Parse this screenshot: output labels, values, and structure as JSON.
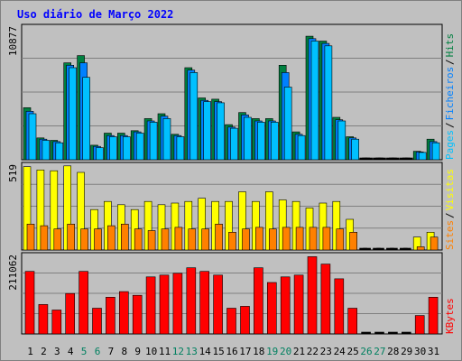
{
  "title": "Uso diário de Março 2022",
  "colors": {
    "pages": "#00c0ff",
    "files": "#0080ff",
    "hits": "#008040",
    "visits": "#ffff00",
    "sites": "#ff8000",
    "kbytes": "#ff0000",
    "weekend_label": "#008060",
    "weekday_label": "#000000",
    "bg": "#c0c0c0"
  },
  "chart_data": [
    {
      "type": "bar",
      "name": "top-panel",
      "ymax_label": "10877",
      "ylim": [
        0,
        10877
      ],
      "legend": [
        "Pages",
        "/",
        "Ficheiros",
        "/",
        "Hits"
      ],
      "series": [
        {
          "name": "Hits",
          "values": [
            4300,
            1800,
            1600,
            8000,
            8600,
            1200,
            2200,
            2200,
            2400,
            3400,
            3800,
            2100,
            7600,
            5100,
            5000,
            2900,
            3900,
            3400,
            3400,
            7800,
            2300,
            10200,
            9800,
            3500,
            1900,
            0,
            0,
            0,
            0,
            700,
            1700
          ]
        },
        {
          "name": "Ficheiros",
          "values": [
            4000,
            1700,
            1500,
            7800,
            8000,
            1100,
            2000,
            2000,
            2300,
            3200,
            3600,
            2000,
            7400,
            4900,
            4800,
            2700,
            3700,
            3200,
            3200,
            7200,
            2100,
            10000,
            9600,
            3300,
            1800,
            0,
            0,
            0,
            0,
            650,
            1500
          ]
        },
        {
          "name": "Pages",
          "values": [
            3800,
            1600,
            1400,
            7600,
            6800,
            1000,
            1900,
            1900,
            2200,
            3100,
            3400,
            1900,
            7200,
            4800,
            4700,
            2600,
            3500,
            3100,
            3100,
            6000,
            2000,
            9800,
            9400,
            3200,
            1700,
            0,
            0,
            0,
            0,
            600,
            1400
          ]
        }
      ]
    },
    {
      "type": "bar",
      "name": "middle-panel",
      "ymax_label": "519",
      "ylim": [
        0,
        519
      ],
      "legend": [
        "Sites",
        "/",
        "Visitas"
      ],
      "series": [
        {
          "name": "Visitas",
          "values": [
            515,
            495,
            490,
            520,
            480,
            250,
            300,
            280,
            250,
            300,
            280,
            290,
            300,
            320,
            300,
            300,
            360,
            300,
            360,
            310,
            300,
            260,
            290,
            300,
            190,
            0,
            0,
            0,
            0,
            80,
            110
          ]
        },
        {
          "name": "Sites",
          "values": [
            160,
            150,
            130,
            160,
            130,
            130,
            150,
            160,
            130,
            120,
            130,
            140,
            130,
            130,
            160,
            110,
            130,
            140,
            130,
            140,
            140,
            140,
            140,
            130,
            110,
            0,
            0,
            0,
            0,
            20,
            80
          ]
        }
      ]
    },
    {
      "type": "bar",
      "name": "bottom-panel",
      "ymax_label": "211062",
      "ylim": [
        0,
        211062
      ],
      "legend": [
        "KBytes"
      ],
      "series": [
        {
          "name": "KBytes",
          "values": [
            170000,
            80000,
            65000,
            110000,
            170000,
            70000,
            100000,
            115000,
            105000,
            155000,
            160000,
            165000,
            180000,
            170000,
            160000,
            70000,
            75000,
            180000,
            140000,
            155000,
            160000,
            210000,
            190000,
            150000,
            70000,
            0,
            0,
            0,
            0,
            50000,
            100000
          ]
        }
      ]
    }
  ],
  "x_labels": [
    "1",
    "2",
    "3",
    "4",
    "5",
    "6",
    "7",
    "8",
    "9",
    "10",
    "11",
    "12",
    "13",
    "14",
    "15",
    "16",
    "17",
    "18",
    "19",
    "20",
    "21",
    "22",
    "23",
    "24",
    "25",
    "26",
    "27",
    "28",
    "29",
    "30",
    "31"
  ],
  "weekend_days": [
    5,
    6,
    12,
    13,
    19,
    20,
    26,
    27
  ]
}
